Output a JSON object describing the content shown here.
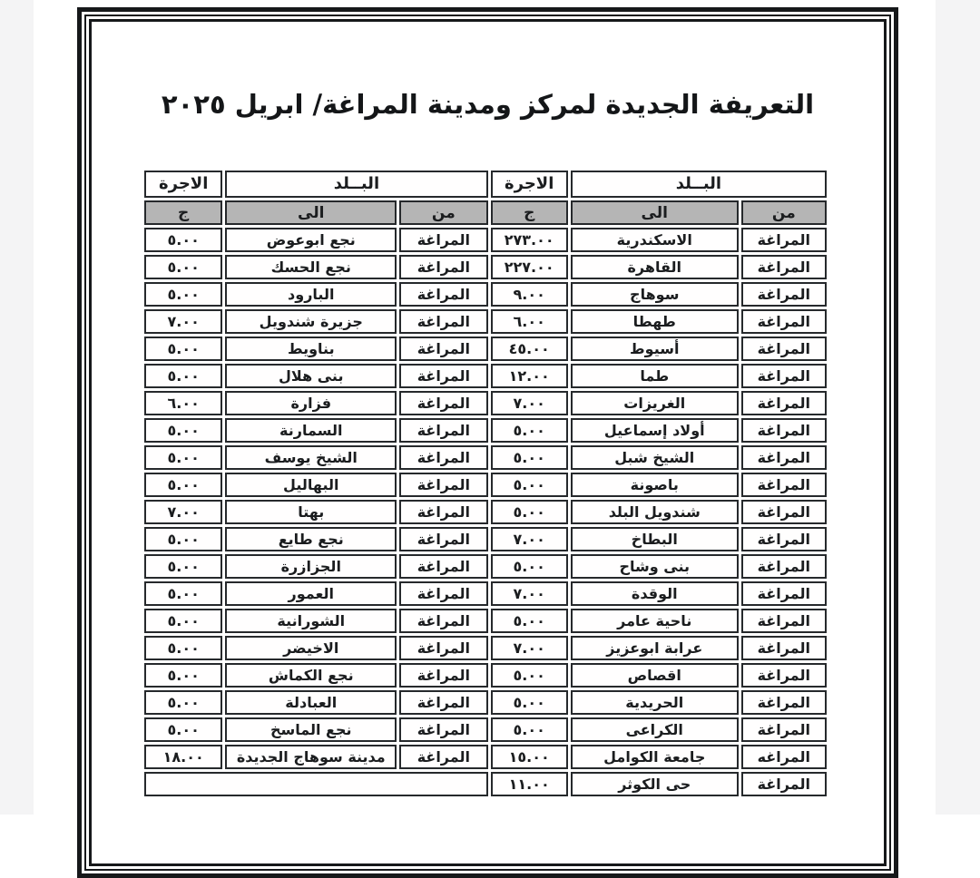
{
  "page": {
    "title": "التعريفة الجديدة لمركز ومدينة المراغة/ ابريل ٢٠٢٥"
  },
  "colors": {
    "subheader_bg": "#b5b5b5",
    "frame": "#16181a",
    "scan_margin": "#f4f4f5"
  },
  "table": {
    "header": {
      "country": "البــلد",
      "fare": "الاجرة",
      "from": "من",
      "to": "الى",
      "currency": "ج"
    },
    "rows": [
      {
        "r_from": "المراغة",
        "r_to": "الاسكندرية",
        "r_fare": "٢٧٣.٠٠",
        "l_from": "المراغة",
        "l_to": "نجع ابوعوض",
        "l_fare": "٥.٠٠"
      },
      {
        "r_from": "المراغة",
        "r_to": "القاهرة",
        "r_fare": "٢٢٧.٠٠",
        "l_from": "المراغة",
        "l_to": "نجع الحسك",
        "l_fare": "٥.٠٠"
      },
      {
        "r_from": "المراغة",
        "r_to": "سوهاج",
        "r_fare": "٩.٠٠",
        "l_from": "المراغة",
        "l_to": "البارود",
        "l_fare": "٥.٠٠"
      },
      {
        "r_from": "المراغة",
        "r_to": "طهطا",
        "r_fare": "٦.٠٠",
        "l_from": "المراغة",
        "l_to": "جزيرة شندويل",
        "l_fare": "٧.٠٠"
      },
      {
        "r_from": "المراغة",
        "r_to": "أسيوط",
        "r_fare": "٤٥.٠٠",
        "l_from": "المراغة",
        "l_to": "بناويط",
        "l_fare": "٥.٠٠"
      },
      {
        "r_from": "المراغة",
        "r_to": "طما",
        "r_fare": "١٢.٠٠",
        "l_from": "المراغة",
        "l_to": "بنى هلال",
        "l_fare": "٥.٠٠"
      },
      {
        "r_from": "المراغة",
        "r_to": "الغريزات",
        "r_fare": "٧.٠٠",
        "l_from": "المراغة",
        "l_to": "فزارة",
        "l_fare": "٦.٠٠"
      },
      {
        "r_from": "المراغة",
        "r_to": "أولاد إسماعيل",
        "r_fare": "٥.٠٠",
        "l_from": "المراغة",
        "l_to": "السمارنة",
        "l_fare": "٥.٠٠"
      },
      {
        "r_from": "المراغة",
        "r_to": "الشيخ شبل",
        "r_fare": "٥.٠٠",
        "l_from": "المراغة",
        "l_to": "الشيخ يوسف",
        "l_fare": "٥.٠٠"
      },
      {
        "r_from": "المراغة",
        "r_to": "باصونة",
        "r_fare": "٥.٠٠",
        "l_from": "المراغة",
        "l_to": "البهاليل",
        "l_fare": "٥.٠٠"
      },
      {
        "r_from": "المراغة",
        "r_to": "شندويل البلد",
        "r_fare": "٥.٠٠",
        "l_from": "المراغة",
        "l_to": "بهتا",
        "l_fare": "٧.٠٠"
      },
      {
        "r_from": "المراغة",
        "r_to": "البطاخ",
        "r_fare": "٧.٠٠",
        "l_from": "المراغة",
        "l_to": "نجع طايع",
        "l_fare": "٥.٠٠"
      },
      {
        "r_from": "المراغة",
        "r_to": "بنى وشاح",
        "r_fare": "٥.٠٠",
        "l_from": "المراغة",
        "l_to": "الجزازرة",
        "l_fare": "٥.٠٠"
      },
      {
        "r_from": "المراغة",
        "r_to": "الوقدة",
        "r_fare": "٧.٠٠",
        "l_from": "المراغة",
        "l_to": "العمور",
        "l_fare": "٥.٠٠"
      },
      {
        "r_from": "المراغة",
        "r_to": "ناحية عامر",
        "r_fare": "٥.٠٠",
        "l_from": "المراغة",
        "l_to": "الشورانية",
        "l_fare": "٥.٠٠"
      },
      {
        "r_from": "المراغة",
        "r_to": "عرابة ابوعزيز",
        "r_fare": "٧.٠٠",
        "l_from": "المراغة",
        "l_to": "الاخيضر",
        "l_fare": "٥.٠٠"
      },
      {
        "r_from": "المراغة",
        "r_to": "اقصاص",
        "r_fare": "٥.٠٠",
        "l_from": "المراغة",
        "l_to": "نجع الكماش",
        "l_fare": "٥.٠٠"
      },
      {
        "r_from": "المراغة",
        "r_to": "الحريدية",
        "r_fare": "٥.٠٠",
        "l_from": "المراغة",
        "l_to": "العبادلة",
        "l_fare": "٥.٠٠"
      },
      {
        "r_from": "المراغة",
        "r_to": "الكراعى",
        "r_fare": "٥.٠٠",
        "l_from": "المراغة",
        "l_to": "نجع الماسخ",
        "l_fare": "٥.٠٠"
      },
      {
        "r_from": "المراغه",
        "r_to": "جامعة الكوامل",
        "r_fare": "١٥.٠٠",
        "l_from": "المراغة",
        "l_to": "مدينة سوهاج الجديدة",
        "l_fare": "١٨.٠٠"
      },
      {
        "r_from": "المراغة",
        "r_to": "حى الكوثر",
        "r_fare": "١١.٠٠",
        "l_from": null,
        "l_to": null,
        "l_fare": null
      }
    ]
  }
}
